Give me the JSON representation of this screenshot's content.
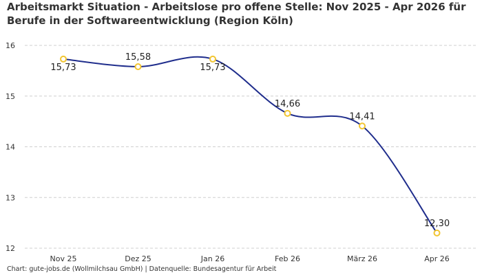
{
  "chart_data": {
    "type": "line",
    "title": "Arbeitsmarkt Situation - Arbeitslose pro offene Stelle: Nov 2025 - Apr 2026 für Berufe in der Softwareentwicklung (Region Köln)",
    "categories": [
      "Nov 25",
      "Dez 25",
      "Jan 26",
      "Feb 26",
      "März 26",
      "Apr 26"
    ],
    "series": [
      {
        "values": [
          15.73,
          15.58,
          15.73,
          14.66,
          14.41,
          12.3
        ],
        "data_labels": [
          "15,73",
          "15,58",
          "15,73",
          "14,66",
          "14,41",
          "12,30"
        ]
      }
    ],
    "xlabel": "",
    "ylabel": "",
    "ylim": [
      12,
      16
    ],
    "yticks": [
      "12",
      "13",
      "14",
      "15",
      "16"
    ],
    "grid": "horizontal dashed",
    "line_color": "#1f2d8c",
    "marker_color": "#f2c531",
    "footer": "Chart: gute-jobs.de (Wollmilchsau GmbH) | Datenquelle: Bundesagentur für Arbeit"
  }
}
